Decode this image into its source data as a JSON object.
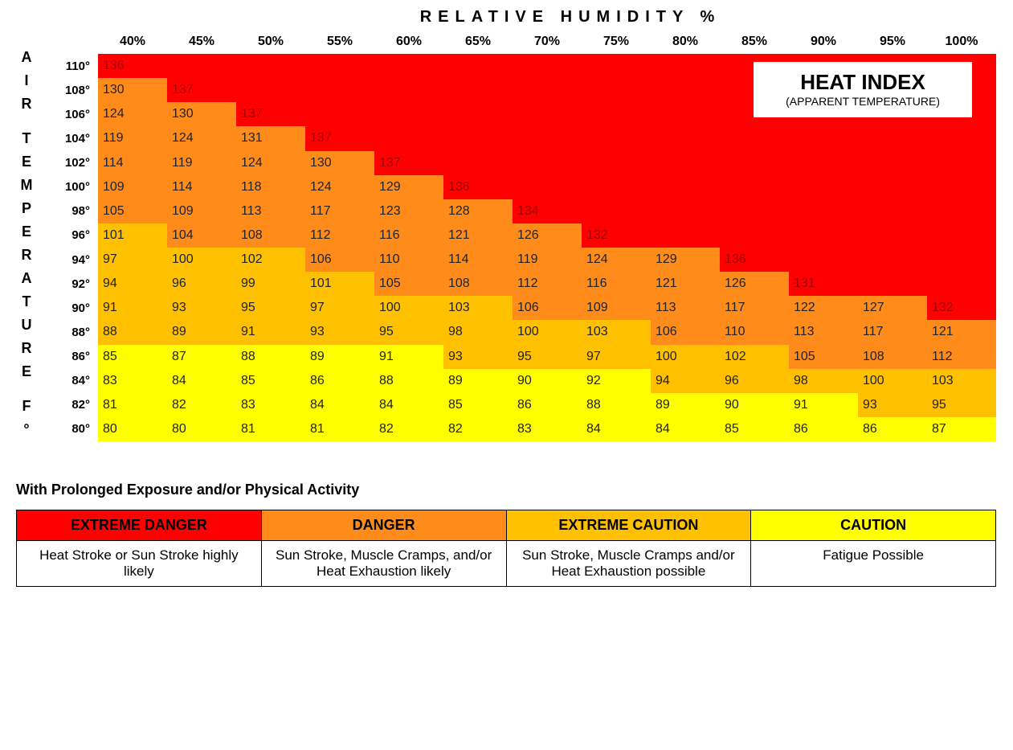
{
  "chart": {
    "type": "heatmap",
    "top_title": "RELATIVE HUMIDITY %",
    "y_axis_label": "AIR TEMPERATURE F°",
    "box_title": "HEAT INDEX",
    "box_subtitle": "(APPARENT TEMPERATURE)",
    "humidity": [
      "40%",
      "45%",
      "50%",
      "55%",
      "60%",
      "65%",
      "70%",
      "75%",
      "80%",
      "85%",
      "90%",
      "95%",
      "100%"
    ],
    "temperatures": [
      "110°",
      "108°",
      "106°",
      "104°",
      "102°",
      "100°",
      "98°",
      "96°",
      "94°",
      "92°",
      "90°",
      "88°",
      "86°",
      "84°",
      "82°",
      "80°"
    ],
    "levels": {
      "extreme_danger": {
        "bg": "#ff0000",
        "fg": "#a00000"
      },
      "danger": {
        "bg": "#ff8c1a",
        "fg": "#222222"
      },
      "extreme_caution": {
        "bg": "#ffc000",
        "fg": "#222222"
      },
      "caution": {
        "bg": "#ffff00",
        "fg": "#222222"
      },
      "none": {
        "bg": "#ff0000",
        "fg": "#ff0000"
      }
    },
    "cells": [
      [
        {
          "v": "136",
          "l": "extreme_danger"
        },
        {
          "v": "",
          "l": "none"
        },
        {
          "v": "",
          "l": "none"
        },
        {
          "v": "",
          "l": "none"
        },
        {
          "v": "",
          "l": "none"
        },
        {
          "v": "",
          "l": "none"
        },
        {
          "v": "",
          "l": "none"
        },
        {
          "v": "",
          "l": "none"
        },
        {
          "v": "",
          "l": "none"
        },
        {
          "v": "",
          "l": "none"
        },
        {
          "v": "",
          "l": "none"
        },
        {
          "v": "",
          "l": "none"
        },
        {
          "v": "",
          "l": "none"
        }
      ],
      [
        {
          "v": "130",
          "l": "danger"
        },
        {
          "v": "137",
          "l": "extreme_danger"
        },
        {
          "v": "",
          "l": "none"
        },
        {
          "v": "",
          "l": "none"
        },
        {
          "v": "",
          "l": "none"
        },
        {
          "v": "",
          "l": "none"
        },
        {
          "v": "",
          "l": "none"
        },
        {
          "v": "",
          "l": "none"
        },
        {
          "v": "",
          "l": "none"
        },
        {
          "v": "",
          "l": "none"
        },
        {
          "v": "",
          "l": "none"
        },
        {
          "v": "",
          "l": "none"
        },
        {
          "v": "",
          "l": "none"
        }
      ],
      [
        {
          "v": "124",
          "l": "danger"
        },
        {
          "v": "130",
          "l": "danger"
        },
        {
          "v": "137",
          "l": "extreme_danger"
        },
        {
          "v": "",
          "l": "none"
        },
        {
          "v": "",
          "l": "none"
        },
        {
          "v": "",
          "l": "none"
        },
        {
          "v": "",
          "l": "none"
        },
        {
          "v": "",
          "l": "none"
        },
        {
          "v": "",
          "l": "none"
        },
        {
          "v": "",
          "l": "none"
        },
        {
          "v": "",
          "l": "none"
        },
        {
          "v": "",
          "l": "none"
        },
        {
          "v": "",
          "l": "none"
        }
      ],
      [
        {
          "v": "119",
          "l": "danger"
        },
        {
          "v": "124",
          "l": "danger"
        },
        {
          "v": "131",
          "l": "danger"
        },
        {
          "v": "137",
          "l": "extreme_danger"
        },
        {
          "v": "",
          "l": "none"
        },
        {
          "v": "",
          "l": "none"
        },
        {
          "v": "",
          "l": "none"
        },
        {
          "v": "",
          "l": "none"
        },
        {
          "v": "",
          "l": "none"
        },
        {
          "v": "",
          "l": "none"
        },
        {
          "v": "",
          "l": "none"
        },
        {
          "v": "",
          "l": "none"
        },
        {
          "v": "",
          "l": "none"
        }
      ],
      [
        {
          "v": "114",
          "l": "danger"
        },
        {
          "v": "119",
          "l": "danger"
        },
        {
          "v": "124",
          "l": "danger"
        },
        {
          "v": "130",
          "l": "danger"
        },
        {
          "v": "137",
          "l": "extreme_danger"
        },
        {
          "v": "",
          "l": "none"
        },
        {
          "v": "",
          "l": "none"
        },
        {
          "v": "",
          "l": "none"
        },
        {
          "v": "",
          "l": "none"
        },
        {
          "v": "",
          "l": "none"
        },
        {
          "v": "",
          "l": "none"
        },
        {
          "v": "",
          "l": "none"
        },
        {
          "v": "",
          "l": "none"
        }
      ],
      [
        {
          "v": "109",
          "l": "danger"
        },
        {
          "v": "114",
          "l": "danger"
        },
        {
          "v": "118",
          "l": "danger"
        },
        {
          "v": "124",
          "l": "danger"
        },
        {
          "v": "129",
          "l": "danger"
        },
        {
          "v": "136",
          "l": "extreme_danger"
        },
        {
          "v": "",
          "l": "none"
        },
        {
          "v": "",
          "l": "none"
        },
        {
          "v": "",
          "l": "none"
        },
        {
          "v": "",
          "l": "none"
        },
        {
          "v": "",
          "l": "none"
        },
        {
          "v": "",
          "l": "none"
        },
        {
          "v": "",
          "l": "none"
        }
      ],
      [
        {
          "v": "105",
          "l": "danger"
        },
        {
          "v": "109",
          "l": "danger"
        },
        {
          "v": "113",
          "l": "danger"
        },
        {
          "v": "117",
          "l": "danger"
        },
        {
          "v": "123",
          "l": "danger"
        },
        {
          "v": "128",
          "l": "danger"
        },
        {
          "v": "134",
          "l": "extreme_danger"
        },
        {
          "v": "",
          "l": "none"
        },
        {
          "v": "",
          "l": "none"
        },
        {
          "v": "",
          "l": "none"
        },
        {
          "v": "",
          "l": "none"
        },
        {
          "v": "",
          "l": "none"
        },
        {
          "v": "",
          "l": "none"
        }
      ],
      [
        {
          "v": "101",
          "l": "extreme_caution"
        },
        {
          "v": "104",
          "l": "danger"
        },
        {
          "v": "108",
          "l": "danger"
        },
        {
          "v": "112",
          "l": "danger"
        },
        {
          "v": "116",
          "l": "danger"
        },
        {
          "v": "121",
          "l": "danger"
        },
        {
          "v": "126",
          "l": "danger"
        },
        {
          "v": "132",
          "l": "extreme_danger"
        },
        {
          "v": "",
          "l": "none"
        },
        {
          "v": "",
          "l": "none"
        },
        {
          "v": "",
          "l": "none"
        },
        {
          "v": "",
          "l": "none"
        },
        {
          "v": "",
          "l": "none"
        }
      ],
      [
        {
          "v": "97",
          "l": "extreme_caution"
        },
        {
          "v": "100",
          "l": "extreme_caution"
        },
        {
          "v": "102",
          "l": "extreme_caution"
        },
        {
          "v": "106",
          "l": "danger"
        },
        {
          "v": "110",
          "l": "danger"
        },
        {
          "v": "114",
          "l": "danger"
        },
        {
          "v": "119",
          "l": "danger"
        },
        {
          "v": "124",
          "l": "danger"
        },
        {
          "v": "129",
          "l": "danger"
        },
        {
          "v": "136",
          "l": "extreme_danger"
        },
        {
          "v": "",
          "l": "none"
        },
        {
          "v": "",
          "l": "none"
        },
        {
          "v": "",
          "l": "none"
        }
      ],
      [
        {
          "v": "94",
          "l": "extreme_caution"
        },
        {
          "v": "96",
          "l": "extreme_caution"
        },
        {
          "v": "99",
          "l": "extreme_caution"
        },
        {
          "v": "101",
          "l": "extreme_caution"
        },
        {
          "v": "105",
          "l": "danger"
        },
        {
          "v": "108",
          "l": "danger"
        },
        {
          "v": "112",
          "l": "danger"
        },
        {
          "v": "116",
          "l": "danger"
        },
        {
          "v": "121",
          "l": "danger"
        },
        {
          "v": "126",
          "l": "danger"
        },
        {
          "v": "131",
          "l": "extreme_danger"
        },
        {
          "v": "",
          "l": "none"
        },
        {
          "v": "",
          "l": "none"
        }
      ],
      [
        {
          "v": "91",
          "l": "extreme_caution"
        },
        {
          "v": "93",
          "l": "extreme_caution"
        },
        {
          "v": "95",
          "l": "extreme_caution"
        },
        {
          "v": "97",
          "l": "extreme_caution"
        },
        {
          "v": "100",
          "l": "extreme_caution"
        },
        {
          "v": "103",
          "l": "extreme_caution"
        },
        {
          "v": "106",
          "l": "danger"
        },
        {
          "v": "109",
          "l": "danger"
        },
        {
          "v": "113",
          "l": "danger"
        },
        {
          "v": "117",
          "l": "danger"
        },
        {
          "v": "122",
          "l": "danger"
        },
        {
          "v": "127",
          "l": "danger"
        },
        {
          "v": "132",
          "l": "extreme_danger"
        }
      ],
      [
        {
          "v": "88",
          "l": "extreme_caution"
        },
        {
          "v": "89",
          "l": "extreme_caution"
        },
        {
          "v": "91",
          "l": "extreme_caution"
        },
        {
          "v": "93",
          "l": "extreme_caution"
        },
        {
          "v": "95",
          "l": "extreme_caution"
        },
        {
          "v": "98",
          "l": "extreme_caution"
        },
        {
          "v": "100",
          "l": "extreme_caution"
        },
        {
          "v": "103",
          "l": "extreme_caution"
        },
        {
          "v": "106",
          "l": "danger"
        },
        {
          "v": "110",
          "l": "danger"
        },
        {
          "v": "113",
          "l": "danger"
        },
        {
          "v": "117",
          "l": "danger"
        },
        {
          "v": "121",
          "l": "danger"
        }
      ],
      [
        {
          "v": "85",
          "l": "caution"
        },
        {
          "v": "87",
          "l": "caution"
        },
        {
          "v": "88",
          "l": "caution"
        },
        {
          "v": "89",
          "l": "caution"
        },
        {
          "v": "91",
          "l": "caution"
        },
        {
          "v": "93",
          "l": "extreme_caution"
        },
        {
          "v": "95",
          "l": "extreme_caution"
        },
        {
          "v": "97",
          "l": "extreme_caution"
        },
        {
          "v": "100",
          "l": "extreme_caution"
        },
        {
          "v": "102",
          "l": "extreme_caution"
        },
        {
          "v": "105",
          "l": "danger"
        },
        {
          "v": "108",
          "l": "danger"
        },
        {
          "v": "112",
          "l": "danger"
        }
      ],
      [
        {
          "v": "83",
          "l": "caution"
        },
        {
          "v": "84",
          "l": "caution"
        },
        {
          "v": "85",
          "l": "caution"
        },
        {
          "v": "86",
          "l": "caution"
        },
        {
          "v": "88",
          "l": "caution"
        },
        {
          "v": "89",
          "l": "caution"
        },
        {
          "v": "90",
          "l": "caution"
        },
        {
          "v": "92",
          "l": "caution"
        },
        {
          "v": "94",
          "l": "extreme_caution"
        },
        {
          "v": "96",
          "l": "extreme_caution"
        },
        {
          "v": "98",
          "l": "extreme_caution"
        },
        {
          "v": "100",
          "l": "extreme_caution"
        },
        {
          "v": "103",
          "l": "extreme_caution"
        }
      ],
      [
        {
          "v": "81",
          "l": "caution"
        },
        {
          "v": "82",
          "l": "caution"
        },
        {
          "v": "83",
          "l": "caution"
        },
        {
          "v": "84",
          "l": "caution"
        },
        {
          "v": "84",
          "l": "caution"
        },
        {
          "v": "85",
          "l": "caution"
        },
        {
          "v": "86",
          "l": "caution"
        },
        {
          "v": "88",
          "l": "caution"
        },
        {
          "v": "89",
          "l": "caution"
        },
        {
          "v": "90",
          "l": "caution"
        },
        {
          "v": "91",
          "l": "caution"
        },
        {
          "v": "93",
          "l": "extreme_caution"
        },
        {
          "v": "95",
          "l": "extreme_caution"
        }
      ],
      [
        {
          "v": "80",
          "l": "caution"
        },
        {
          "v": "80",
          "l": "caution"
        },
        {
          "v": "81",
          "l": "caution"
        },
        {
          "v": "81",
          "l": "caution"
        },
        {
          "v": "82",
          "l": "caution"
        },
        {
          "v": "82",
          "l": "caution"
        },
        {
          "v": "83",
          "l": "caution"
        },
        {
          "v": "84",
          "l": "caution"
        },
        {
          "v": "84",
          "l": "caution"
        },
        {
          "v": "85",
          "l": "caution"
        },
        {
          "v": "86",
          "l": "caution"
        },
        {
          "v": "86",
          "l": "caution"
        },
        {
          "v": "87",
          "l": "caution"
        }
      ]
    ]
  },
  "legend": {
    "section_title": "With Prolonged Exposure and/or Physical Activity",
    "headers": [
      {
        "label": "EXTREME DANGER",
        "bg": "#ff0000"
      },
      {
        "label": "DANGER",
        "bg": "#ff8c1a"
      },
      {
        "label": "EXTREME CAUTION",
        "bg": "#ffc000"
      },
      {
        "label": "CAUTION",
        "bg": "#ffff00"
      }
    ],
    "descs": [
      "Heat Stroke or Sun Stroke highly likely",
      "Sun Stroke, Muscle Cramps, and/or Heat Exhaustion likely",
      "Sun Stroke, Muscle Cramps and/or Heat Exhaustion possible",
      "Fatigue Possible"
    ]
  }
}
